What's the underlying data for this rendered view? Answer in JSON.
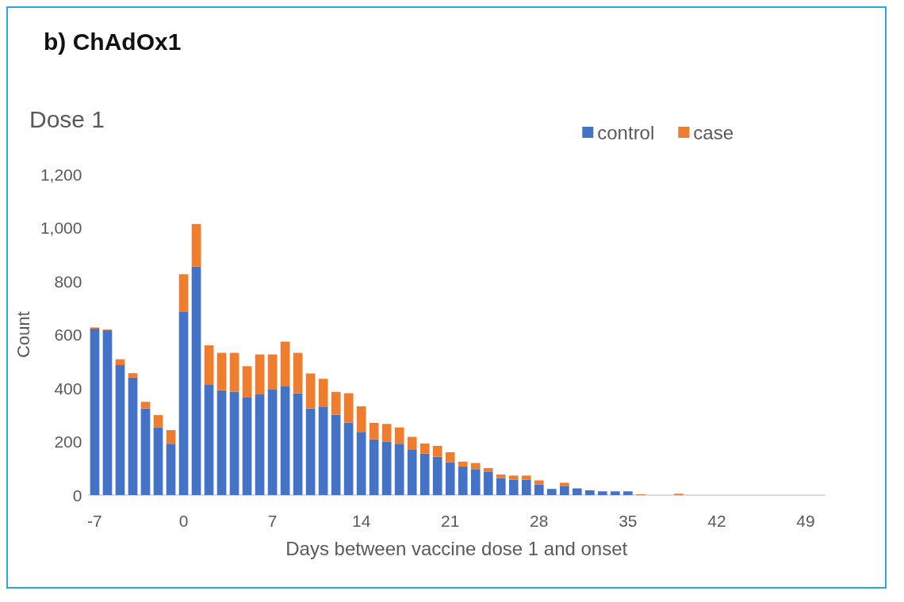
{
  "chart_data": {
    "type": "bar",
    "title": "b) ChAdOx1",
    "subtitle": "Dose 1",
    "xlabel": "Days between vaccine dose 1 and onset",
    "ylabel": "Count",
    "x": [
      -7,
      -6,
      -5,
      -4,
      -3,
      -2,
      -1,
      0,
      1,
      2,
      3,
      4,
      5,
      6,
      7,
      8,
      9,
      10,
      11,
      12,
      13,
      14,
      15,
      16,
      17,
      18,
      19,
      20,
      21,
      22,
      23,
      24,
      25,
      26,
      27,
      28,
      29,
      30,
      31,
      32,
      33,
      34,
      35,
      36,
      37,
      38,
      39
    ],
    "series": [
      {
        "name": "control",
        "color": "#4472c4",
        "values": [
          622,
          617,
          486,
          439,
          324,
          253,
          192,
          687,
          854,
          414,
          392,
          387,
          367,
          376,
          396,
          406,
          381,
          324,
          331,
          301,
          271,
          236,
          208,
          199,
          192,
          171,
          155,
          143,
          123,
          107,
          97,
          88,
          64,
          58,
          58,
          40,
          23,
          34,
          25,
          18,
          14,
          14,
          14,
          0,
          0,
          0,
          0
        ]
      },
      {
        "name": "case",
        "color": "#ed7d31",
        "values": [
          5,
          3,
          22,
          17,
          25,
          46,
          51,
          139,
          160,
          146,
          140,
          145,
          115,
          150,
          130,
          168,
          151,
          131,
          104,
          85,
          110,
          96,
          62,
          67,
          61,
          47,
          38,
          41,
          37,
          18,
          23,
          13,
          13,
          15,
          15,
          15,
          null,
          12,
          0,
          0,
          0,
          0,
          0,
          3,
          0,
          0,
          5
        ]
      }
    ],
    "stacked": true,
    "xlim": [
      -7.5,
      50.5
    ],
    "xticks": [
      -7,
      0,
      7,
      14,
      21,
      28,
      35,
      42,
      49
    ],
    "ylim": [
      0,
      1200
    ],
    "yticks": [
      0,
      200,
      400,
      600,
      800,
      {
        "value": 1000,
        "label": "1,000"
      },
      {
        "value": 1200,
        "label": "1,200"
      }
    ],
    "grid": false,
    "legend": "top right"
  }
}
